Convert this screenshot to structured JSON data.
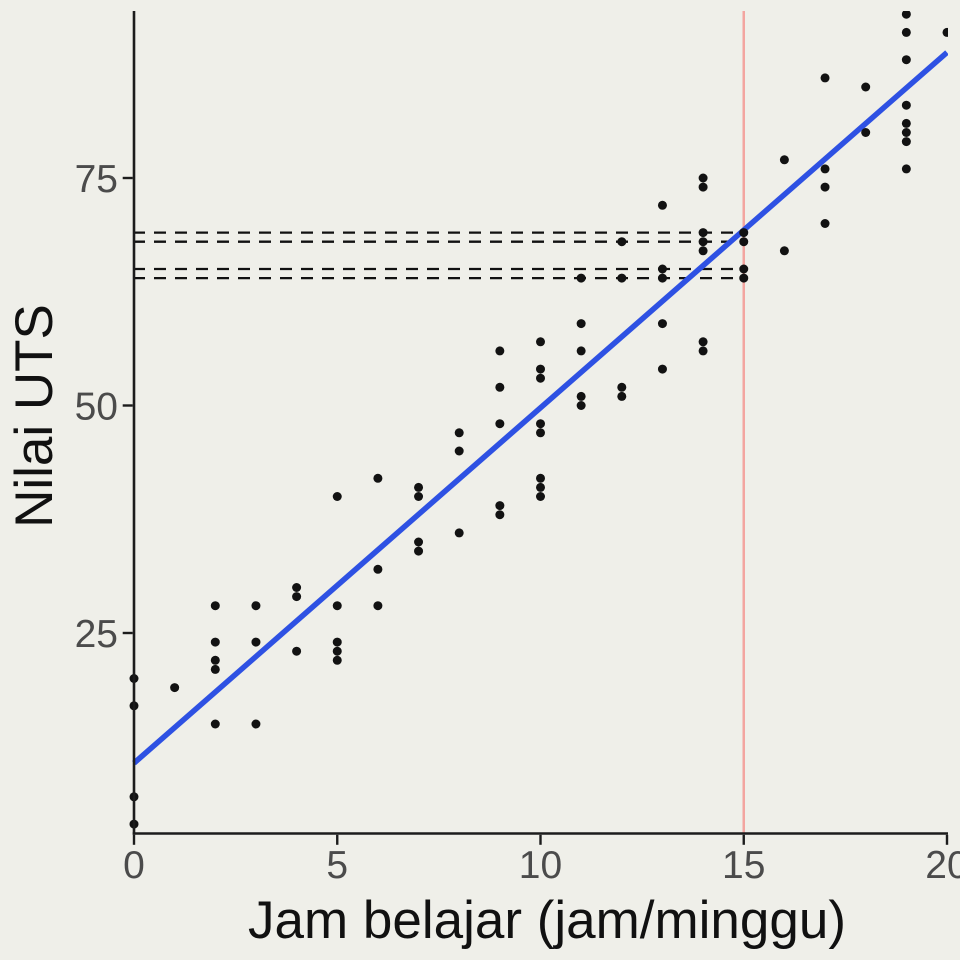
{
  "chart_data": {
    "type": "scatter",
    "title": "",
    "xlabel": "Jam belajar (jam/minggu)",
    "ylabel": "Nilai UTS",
    "xlim": [
      0,
      20
    ],
    "ylim": [
      3,
      94.6
    ],
    "grid": false,
    "legend": null,
    "x_ticks": [
      0,
      5,
      10,
      15,
      20
    ],
    "y_ticks": [
      25,
      50,
      75
    ],
    "x_tick_labels": [
      "0",
      "5",
      "10",
      "15",
      "20"
    ],
    "y_tick_labels": [
      "25",
      "50",
      "75"
    ],
    "points": [
      [
        0,
        20
      ],
      [
        0,
        17
      ],
      [
        0,
        7
      ],
      [
        0,
        4
      ],
      [
        1,
        19
      ],
      [
        2,
        28
      ],
      [
        2,
        24
      ],
      [
        2,
        22
      ],
      [
        2,
        21
      ],
      [
        2,
        15
      ],
      [
        3,
        28
      ],
      [
        3,
        24
      ],
      [
        3,
        15
      ],
      [
        4,
        30
      ],
      [
        4,
        29
      ],
      [
        4,
        23
      ],
      [
        5,
        40
      ],
      [
        5,
        28
      ],
      [
        5,
        24
      ],
      [
        5,
        23
      ],
      [
        5,
        22
      ],
      [
        6,
        42
      ],
      [
        6,
        32
      ],
      [
        6,
        28
      ],
      [
        7,
        41
      ],
      [
        7,
        40
      ],
      [
        7,
        35
      ],
      [
        7,
        34
      ],
      [
        8,
        47
      ],
      [
        8,
        45
      ],
      [
        8,
        36
      ],
      [
        9,
        56
      ],
      [
        9,
        52
      ],
      [
        9,
        48
      ],
      [
        9,
        39
      ],
      [
        9,
        38
      ],
      [
        10,
        57
      ],
      [
        10,
        54
      ],
      [
        10,
        53
      ],
      [
        10,
        48
      ],
      [
        10,
        47
      ],
      [
        10,
        42
      ],
      [
        10,
        41
      ],
      [
        10,
        40
      ],
      [
        11,
        64
      ],
      [
        11,
        59
      ],
      [
        11,
        56
      ],
      [
        11,
        51
      ],
      [
        11,
        50
      ],
      [
        12,
        68
      ],
      [
        12,
        64
      ],
      [
        12,
        52
      ],
      [
        12,
        51
      ],
      [
        13,
        72
      ],
      [
        13,
        65
      ],
      [
        13,
        64
      ],
      [
        13,
        59
      ],
      [
        13,
        54
      ],
      [
        14,
        75
      ],
      [
        14,
        74
      ],
      [
        14,
        69
      ],
      [
        14,
        68
      ],
      [
        14,
        67
      ],
      [
        14,
        57
      ],
      [
        14,
        56
      ],
      [
        15,
        69
      ],
      [
        15,
        68
      ],
      [
        15,
        65
      ],
      [
        15,
        64
      ],
      [
        16,
        77
      ],
      [
        16,
        67
      ],
      [
        17,
        86
      ],
      [
        17,
        76
      ],
      [
        17,
        74
      ],
      [
        17,
        70
      ],
      [
        18,
        85
      ],
      [
        18,
        80
      ],
      [
        19,
        93
      ],
      [
        19,
        91
      ],
      [
        19,
        88
      ],
      [
        19,
        83
      ],
      [
        19,
        81
      ],
      [
        19,
        80
      ],
      [
        19,
        79
      ],
      [
        19,
        76
      ],
      [
        20,
        91
      ]
    ],
    "regression_line": {
      "x1": 0,
      "y1": 10.7,
      "x2": 20,
      "y2": 88.8
    },
    "vline": {
      "x": 15
    },
    "dashed_hlines": {
      "values": [
        69,
        68,
        65,
        64
      ],
      "x_start": 0,
      "x_end": 15
    },
    "colors": {
      "background": "#EFEFE9",
      "point": "#121212",
      "regression": "#2E51E3",
      "vline": "#F3A5A0",
      "dashed": "#111111",
      "axis": "#1C1C1C",
      "tick_label": "#4B4B4B",
      "axis_title": "#111111"
    }
  }
}
